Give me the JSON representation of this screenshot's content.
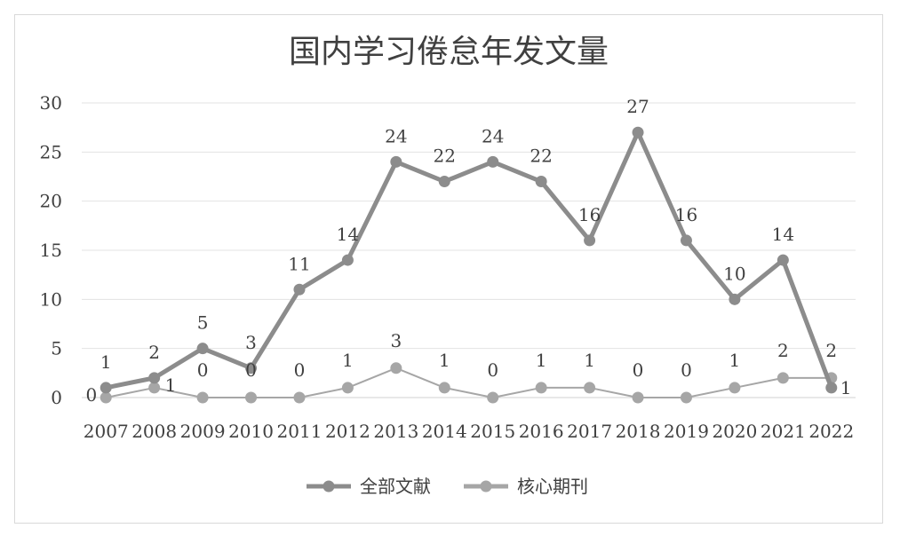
{
  "chart_data": {
    "type": "line",
    "title": "国内学习倦怠年发文量",
    "xlabel": "",
    "ylabel": "",
    "categories": [
      "2007",
      "2008",
      "2009",
      "2010",
      "2011",
      "2012",
      "2013",
      "2014",
      "2015",
      "2016",
      "2017",
      "2018",
      "2019",
      "2020",
      "2021",
      "2022"
    ],
    "ylim": [
      0,
      30
    ],
    "yticks": [
      0,
      5,
      10,
      15,
      20,
      25,
      30
    ],
    "grid": true,
    "legend": "bottom",
    "series": [
      {
        "name": "全部文献",
        "color": "#8c8c8c",
        "values": [
          1,
          2,
          5,
          3,
          11,
          14,
          24,
          22,
          24,
          22,
          16,
          27,
          16,
          10,
          14,
          1
        ]
      },
      {
        "name": "核心期刊",
        "color": "#a6a6a6",
        "values": [
          0,
          1,
          0,
          0,
          0,
          1,
          3,
          1,
          0,
          1,
          1,
          0,
          0,
          1,
          2,
          2
        ]
      }
    ]
  }
}
